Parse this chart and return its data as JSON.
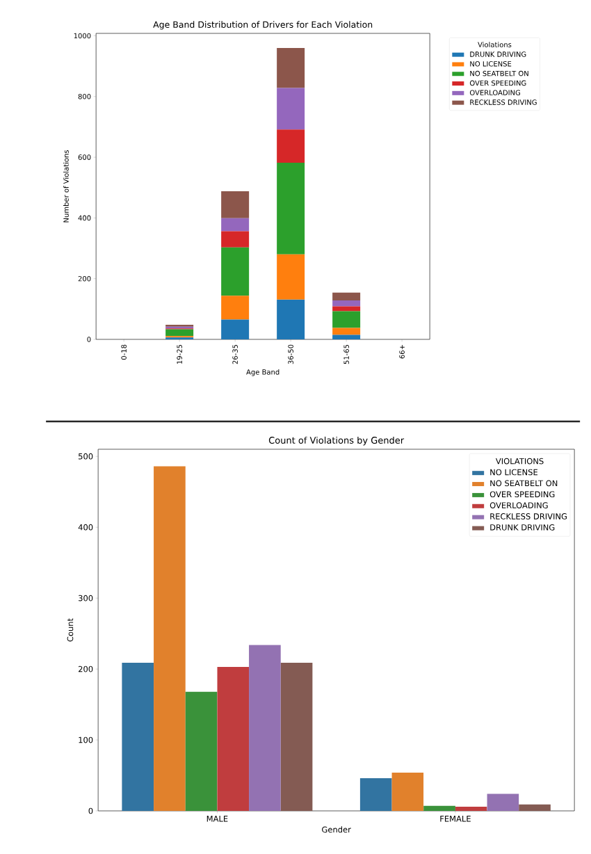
{
  "chart_data": [
    {
      "type": "bar",
      "stacked": true,
      "title": "Age Band Distribution of Drivers for Each Violation",
      "xlabel": "Age Band",
      "ylabel": "Number of Violations",
      "legend_title": "Violations",
      "legend": "right",
      "categories": [
        "0-18",
        "19-25",
        "26-35",
        "36-50",
        "51-65",
        "66+"
      ],
      "ylim": [
        0,
        1008
      ],
      "yticks": [
        0,
        200,
        400,
        600,
        800,
        1000
      ],
      "series": [
        {
          "name": "DRUNK DRIVING",
          "color": "#1f77b4",
          "values": [
            0,
            6,
            65,
            131,
            15,
            0
          ]
        },
        {
          "name": "NO LICENSE",
          "color": "#ff7f0e",
          "values": [
            0,
            5,
            79,
            149,
            23,
            0
          ]
        },
        {
          "name": "NO SEATBELT ON",
          "color": "#2ca02c",
          "values": [
            0,
            22,
            159,
            302,
            55,
            0
          ]
        },
        {
          "name": "OVER SPEEDING",
          "color": "#d62728",
          "values": [
            0,
            3,
            53,
            109,
            16,
            0
          ]
        },
        {
          "name": "OVERLOADING",
          "color": "#9467bd",
          "values": [
            0,
            6,
            43,
            137,
            19,
            0
          ]
        },
        {
          "name": "RECKLESS DRIVING",
          "color": "#8c564b",
          "values": [
            0,
            6,
            89,
            132,
            26,
            0
          ]
        }
      ]
    },
    {
      "type": "bar",
      "title": "Count of Violations by Gender",
      "xlabel": "Gender",
      "ylabel": "Count",
      "legend_title": "VIOLATIONS",
      "legend": "top right",
      "categories": [
        "MALE",
        "FEMALE"
      ],
      "ylim": [
        0,
        510
      ],
      "yticks": [
        0,
        100,
        200,
        300,
        400,
        500
      ],
      "series": [
        {
          "name": "NO LICENSE",
          "color": "#3274a1",
          "values": [
            209,
            46
          ]
        },
        {
          "name": "NO SEATBELT ON",
          "color": "#e1812c",
          "values": [
            486,
            54
          ]
        },
        {
          "name": "OVER SPEEDING",
          "color": "#3a923a",
          "values": [
            168,
            7
          ]
        },
        {
          "name": "OVERLOADING",
          "color": "#c03d3e",
          "values": [
            203,
            6
          ]
        },
        {
          "name": "RECKLESS DRIVING",
          "color": "#9372b2",
          "values": [
            234,
            24
          ]
        },
        {
          "name": "DRUNK DRIVING",
          "color": "#845b53",
          "values": [
            209,
            9
          ]
        }
      ]
    }
  ]
}
